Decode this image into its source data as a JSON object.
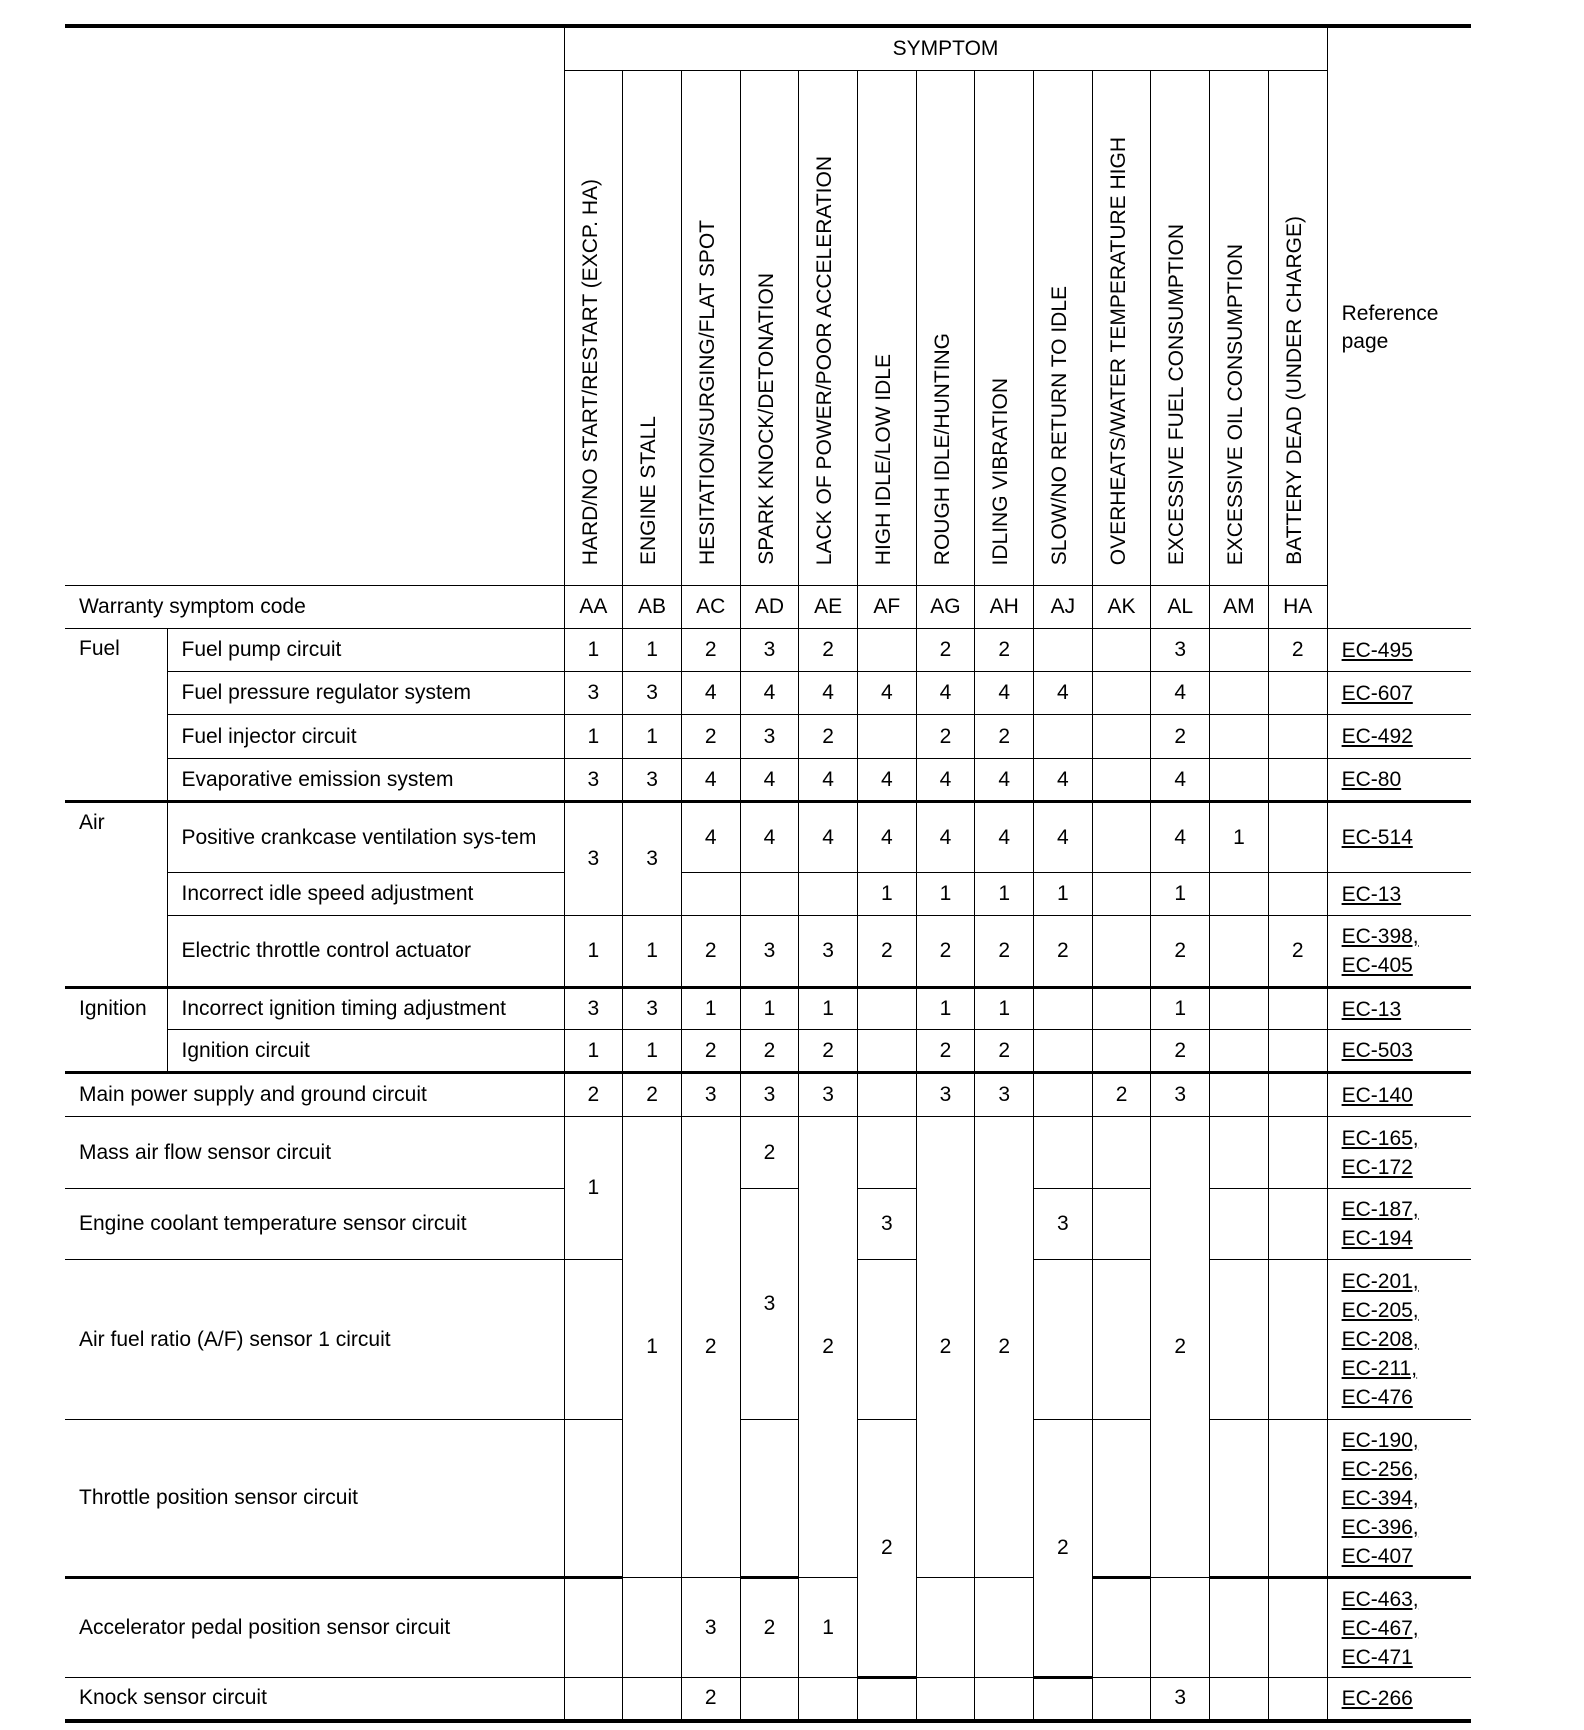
{
  "header": {
    "symptom": "SYMPTOM",
    "reference_page": "Reference page",
    "warranty_label": "Warranty symptom code",
    "columns": [
      {
        "symptom": "HARD/NO START/RESTART (EXCP. HA)",
        "code": "AA"
      },
      {
        "symptom": "ENGINE STALL",
        "code": "AB"
      },
      {
        "symptom": "HESITATION/SURGING/FLAT SPOT",
        "code": "AC"
      },
      {
        "symptom": "SPARK KNOCK/DETONATION",
        "code": "AD"
      },
      {
        "symptom": "LACK OF POWER/POOR ACCELERATION",
        "code": "AE"
      },
      {
        "symptom": "HIGH IDLE/LOW IDLE",
        "code": "AF"
      },
      {
        "symptom": "ROUGH IDLE/HUNTING",
        "code": "AG"
      },
      {
        "symptom": "IDLING VIBRATION",
        "code": "AH"
      },
      {
        "symptom": "SLOW/NO RETURN TO IDLE",
        "code": "AJ"
      },
      {
        "symptom": "OVERHEATS/WATER TEMPERATURE HIGH",
        "code": "AK"
      },
      {
        "symptom": "EXCESSIVE FUEL CONSUMPTION",
        "code": "AL"
      },
      {
        "symptom": "EXCESSIVE OIL CONSUMPTION",
        "code": "AM"
      },
      {
        "symptom": "BATTERY DEAD (UNDER CHARGE)",
        "code": "HA"
      }
    ]
  },
  "rows": [
    {
      "group": "Fuel",
      "group_span": 4,
      "label": "Fuel pump circuit",
      "cells": [
        "1",
        "1",
        "2",
        "3",
        "2",
        "",
        "2",
        "2",
        "",
        "",
        "3",
        "",
        "2"
      ],
      "refs": [
        "EC-495"
      ]
    },
    {
      "label": "Fuel pressure regulator system",
      "cells": [
        "3",
        "3",
        "4",
        "4",
        "4",
        "4",
        "4",
        "4",
        "4",
        "",
        "4",
        "",
        ""
      ],
      "refs": [
        "EC-607"
      ]
    },
    {
      "label": "Fuel injector circuit",
      "cells": [
        "1",
        "1",
        "2",
        "3",
        "2",
        "",
        "2",
        "2",
        "",
        "",
        "2",
        "",
        ""
      ],
      "refs": [
        "EC-492"
      ]
    },
    {
      "label": "Evaporative emission system",
      "cells": [
        "3",
        "3",
        "4",
        "4",
        "4",
        "4",
        "4",
        "4",
        "4",
        "",
        "4",
        "",
        ""
      ],
      "refs": [
        "EC-80"
      ],
      "thick": true
    },
    {
      "group": "Air",
      "group_span": 3,
      "label": "Positive crankcase ventilation sys-tem",
      "cells": [
        {
          "v": "3",
          "span": 2
        },
        {
          "v": "3",
          "span": 2
        },
        "4",
        "4",
        "4",
        "4",
        "4",
        "4",
        "4",
        "",
        "4",
        "1",
        ""
      ],
      "refs": [
        "EC-514"
      ]
    },
    {
      "label": "Incorrect idle speed adjustment",
      "cells": [
        null,
        null,
        "",
        "",
        "",
        "1",
        "1",
        "1",
        "1",
        "",
        "1",
        "",
        ""
      ],
      "refs": [
        "EC-13"
      ]
    },
    {
      "label": "Electric throttle control actuator",
      "cells": [
        "1",
        "1",
        "2",
        "3",
        "3",
        "2",
        "2",
        "2",
        "2",
        "",
        "2",
        "",
        "2"
      ],
      "refs": [
        "EC-398,",
        "EC-405"
      ],
      "thick": true
    },
    {
      "group": "Ignition",
      "group_span": 2,
      "label": "Incorrect ignition timing adjustment",
      "cells": [
        "3",
        "3",
        "1",
        "1",
        "1",
        "",
        "1",
        "1",
        "",
        "",
        "1",
        "",
        ""
      ],
      "refs": [
        "EC-13"
      ]
    },
    {
      "label": "Ignition circuit",
      "cells": [
        "1",
        "1",
        "2",
        "2",
        "2",
        "",
        "2",
        "2",
        "",
        "",
        "2",
        "",
        ""
      ],
      "refs": [
        "EC-503"
      ],
      "thick": true
    },
    {
      "full": true,
      "label": "Main power supply and ground circuit",
      "cells": [
        "2",
        "2",
        "3",
        "3",
        "3",
        "",
        "3",
        "3",
        "",
        "2",
        "3",
        "",
        ""
      ],
      "refs": [
        "EC-140"
      ]
    },
    {
      "full": true,
      "label": "Mass air flow sensor circuit",
      "cells": [
        {
          "v": "1",
          "span": 2
        },
        {
          "v": "1",
          "span": 4
        },
        {
          "v": "2",
          "span": 4
        },
        "2",
        {
          "v": "2",
          "span": 4
        },
        "",
        {
          "v": "2",
          "span": 4
        },
        {
          "v": "2",
          "span": 4
        },
        "",
        "",
        {
          "v": "2",
          "span": 4
        },
        "",
        ""
      ],
      "refs": [
        "EC-165,",
        "EC-172"
      ]
    },
    {
      "full": true,
      "label": "Engine coolant temperature sensor circuit",
      "cells": [
        null,
        null,
        null,
        {
          "v": "3",
          "span": 2
        },
        null,
        "3",
        null,
        null,
        "3",
        "",
        null,
        "",
        ""
      ],
      "refs": [
        "EC-187,",
        "EC-194"
      ]
    },
    {
      "full": true,
      "label": "Air fuel ratio (A/F) sensor 1 circuit",
      "cells": [
        "",
        null,
        null,
        null,
        null,
        "",
        null,
        null,
        "",
        "",
        null,
        "",
        ""
      ],
      "refs": [
        "EC-201,",
        "EC-205,",
        "EC-208,",
        "EC-211,",
        "EC-476"
      ]
    },
    {
      "full": true,
      "label": "Throttle position sensor circuit",
      "cells": [
        "",
        null,
        null,
        "",
        null,
        {
          "v": "2",
          "span": 2
        },
        null,
        null,
        {
          "v": "2",
          "span": 2
        },
        "",
        null,
        "",
        ""
      ],
      "refs": [
        "EC-190,",
        "EC-256,",
        "EC-394,",
        "EC-396,",
        "EC-407"
      ],
      "thick": true
    },
    {
      "full": true,
      "label": "Accelerator pedal position sensor circuit",
      "cells": [
        "",
        "",
        "3",
        "2",
        "1",
        null,
        "",
        "",
        null,
        "",
        "",
        "",
        ""
      ],
      "refs": [
        "EC-463,",
        "EC-467,",
        "EC-471"
      ]
    },
    {
      "full": true,
      "label": "Knock sensor circuit",
      "cells": [
        "",
        "",
        "2",
        "",
        "",
        "",
        "",
        "",
        "",
        "",
        "3",
        "",
        ""
      ],
      "refs": [
        "EC-266"
      ]
    }
  ]
}
